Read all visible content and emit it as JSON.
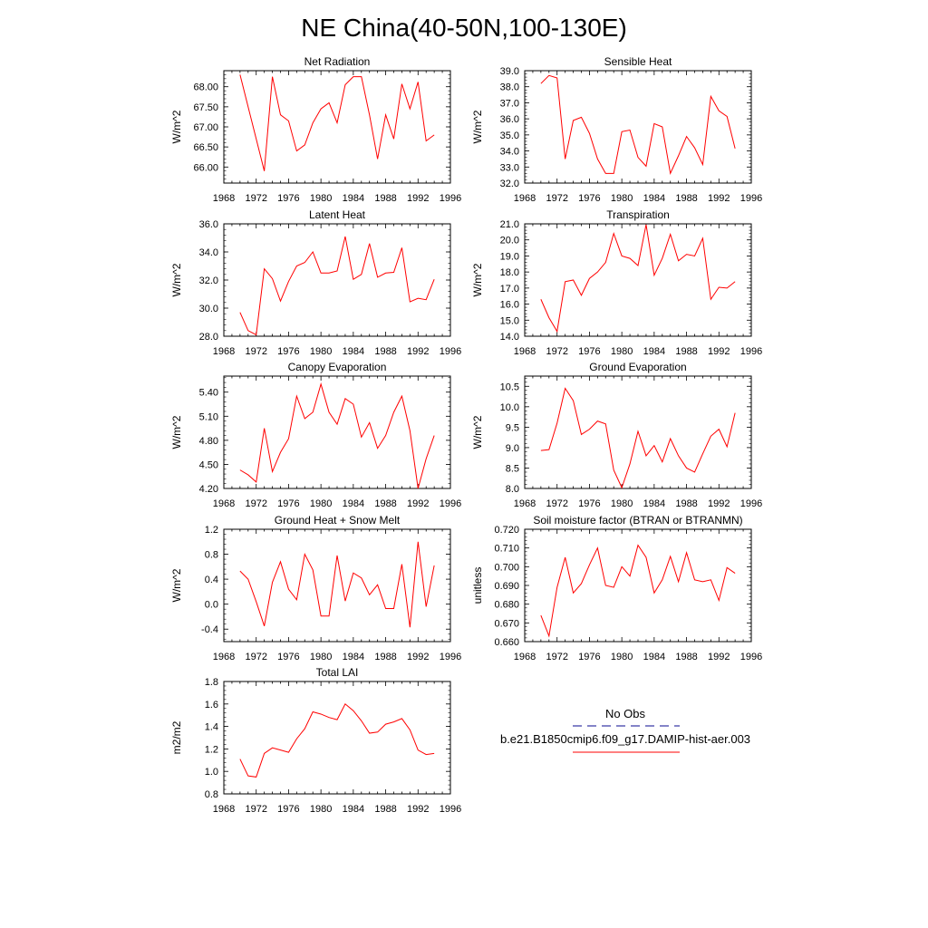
{
  "figure": {
    "title": "NE China(40-50N,100-130E)",
    "legend": {
      "obs_label": "No Obs",
      "model_label": "b.e21.B1850cmip6.f09_g17.DAMIP-hist-aer.003",
      "obs_color": "#3a3aa8",
      "model_color": "#ff0000",
      "placement": "lower-right"
    }
  },
  "chart_data": [
    {
      "type": "line",
      "title": "Net Radiation",
      "ylabel": "W/m^2",
      "xlim": [
        1968,
        1996
      ],
      "xticks": [
        1968,
        1972,
        1976,
        1980,
        1984,
        1988,
        1992,
        1996
      ],
      "ylim": [
        65.6,
        68.4
      ],
      "yticks": [
        66.0,
        66.5,
        67.0,
        67.5,
        68.0
      ],
      "ytick_labels": [
        "66.00",
        "66.50",
        "67.00",
        "67.50",
        "68.00"
      ],
      "x": [
        1970,
        1971,
        1972,
        1973,
        1974,
        1975,
        1976,
        1977,
        1978,
        1979,
        1980,
        1981,
        1982,
        1983,
        1984,
        1985,
        1986,
        1987,
        1988,
        1989,
        1990,
        1991,
        1992,
        1993,
        1994
      ],
      "values": [
        68.3,
        67.5,
        66.7,
        65.9,
        68.25,
        67.3,
        67.15,
        66.4,
        66.55,
        67.1,
        67.45,
        67.6,
        67.1,
        68.05,
        68.25,
        68.25,
        67.3,
        66.2,
        67.3,
        66.7,
        68.07,
        67.45,
        68.12,
        66.65,
        66.8
      ],
      "color": "#ff0000"
    },
    {
      "type": "line",
      "title": "Sensible Heat",
      "ylabel": "W/m^2",
      "xlim": [
        1968,
        1996
      ],
      "xticks": [
        1968,
        1972,
        1976,
        1980,
        1984,
        1988,
        1992,
        1996
      ],
      "ylim": [
        32.0,
        39.0
      ],
      "yticks": [
        32.0,
        33.0,
        34.0,
        35.0,
        36.0,
        37.0,
        38.0,
        39.0
      ],
      "ytick_labels": [
        "32.0",
        "33.0",
        "34.0",
        "35.0",
        "36.0",
        "37.0",
        "38.0",
        "39.0"
      ],
      "x": [
        1970,
        1971,
        1972,
        1973,
        1974,
        1975,
        1976,
        1977,
        1978,
        1979,
        1980,
        1981,
        1982,
        1983,
        1984,
        1985,
        1986,
        1987,
        1988,
        1989,
        1990,
        1991,
        1992,
        1993,
        1994
      ],
      "values": [
        38.2,
        38.7,
        38.55,
        33.5,
        35.9,
        36.1,
        35.1,
        33.5,
        32.6,
        32.6,
        35.2,
        35.3,
        33.6,
        33.05,
        35.7,
        35.5,
        32.6,
        33.7,
        34.9,
        34.2,
        33.15,
        37.4,
        36.5,
        36.15,
        34.15
      ],
      "color": "#ff0000"
    },
    {
      "type": "line",
      "title": "Latent Heat",
      "ylabel": "W/m^2",
      "xlim": [
        1968,
        1996
      ],
      "xticks": [
        1968,
        1972,
        1976,
        1980,
        1984,
        1988,
        1992,
        1996
      ],
      "ylim": [
        28.0,
        36.0
      ],
      "yticks": [
        28.0,
        30.0,
        32.0,
        34.0,
        36.0
      ],
      "ytick_labels": [
        "28.0",
        "30.0",
        "32.0",
        "34.0",
        "36.0"
      ],
      "x": [
        1970,
        1971,
        1972,
        1973,
        1974,
        1975,
        1976,
        1977,
        1978,
        1979,
        1980,
        1981,
        1982,
        1983,
        1984,
        1985,
        1986,
        1987,
        1988,
        1989,
        1990,
        1991,
        1992,
        1993,
        1994
      ],
      "values": [
        29.7,
        28.4,
        28.1,
        32.8,
        32.1,
        30.5,
        31.9,
        33.0,
        33.25,
        34.0,
        32.5,
        32.5,
        32.65,
        35.1,
        32.05,
        32.4,
        34.6,
        32.2,
        32.5,
        32.55,
        34.3,
        30.45,
        30.7,
        30.6,
        32.05
      ],
      "color": "#ff0000"
    },
    {
      "type": "line",
      "title": "Transpiration",
      "ylabel": "W/m^2",
      "xlim": [
        1968,
        1996
      ],
      "xticks": [
        1968,
        1972,
        1976,
        1980,
        1984,
        1988,
        1992,
        1996
      ],
      "ylim": [
        14.0,
        21.0
      ],
      "yticks": [
        14.0,
        15.0,
        16.0,
        17.0,
        18.0,
        19.0,
        20.0,
        21.0
      ],
      "ytick_labels": [
        "14.0",
        "15.0",
        "16.0",
        "17.0",
        "18.0",
        "19.0",
        "20.0",
        "21.0"
      ],
      "x": [
        1970,
        1971,
        1972,
        1973,
        1974,
        1975,
        1976,
        1977,
        1978,
        1979,
        1980,
        1981,
        1982,
        1983,
        1984,
        1985,
        1986,
        1987,
        1988,
        1989,
        1990,
        1991,
        1992,
        1993,
        1994
      ],
      "values": [
        16.3,
        15.15,
        14.3,
        17.4,
        17.5,
        16.55,
        17.6,
        18.0,
        18.6,
        20.4,
        19.0,
        18.85,
        18.4,
        20.95,
        17.8,
        18.85,
        20.35,
        18.7,
        19.1,
        19.0,
        20.1,
        16.3,
        17.05,
        17.0,
        17.4
      ],
      "color": "#ff0000"
    },
    {
      "type": "line",
      "title": "Canopy Evaporation",
      "ylabel": "W/m^2",
      "xlim": [
        1968,
        1996
      ],
      "xticks": [
        1968,
        1972,
        1976,
        1980,
        1984,
        1988,
        1992,
        1996
      ],
      "ylim": [
        4.2,
        5.6
      ],
      "yticks": [
        4.2,
        4.5,
        4.8,
        5.1,
        5.4
      ],
      "ytick_labels": [
        "4.20",
        "4.50",
        "4.80",
        "5.10",
        "5.40"
      ],
      "x": [
        1970,
        1971,
        1972,
        1973,
        1974,
        1975,
        1976,
        1977,
        1978,
        1979,
        1980,
        1981,
        1982,
        1983,
        1984,
        1985,
        1986,
        1987,
        1988,
        1989,
        1990,
        1991,
        1992,
        1993,
        1994
      ],
      "values": [
        4.43,
        4.37,
        4.28,
        4.95,
        4.41,
        4.65,
        4.82,
        5.35,
        5.07,
        5.15,
        5.5,
        5.15,
        5.0,
        5.32,
        5.25,
        4.84,
        5.02,
        4.7,
        4.86,
        5.15,
        5.35,
        4.92,
        4.2,
        4.57,
        4.86
      ],
      "color": "#ff0000"
    },
    {
      "type": "line",
      "title": "Ground Evaporation",
      "ylabel": "W/m^2",
      "xlim": [
        1968,
        1996
      ],
      "xticks": [
        1968,
        1972,
        1976,
        1980,
        1984,
        1988,
        1992,
        1996
      ],
      "ylim": [
        8.0,
        10.75
      ],
      "yticks": [
        8.0,
        8.5,
        9.0,
        9.5,
        10.0,
        10.5
      ],
      "ytick_labels": [
        "8.0",
        "8.5",
        "9.0",
        "9.5",
        "10.0",
        "10.5"
      ],
      "x": [
        1970,
        1971,
        1972,
        1973,
        1974,
        1975,
        1976,
        1977,
        1978,
        1979,
        1980,
        1981,
        1982,
        1983,
        1984,
        1985,
        1986,
        1987,
        1988,
        1989,
        1990,
        1991,
        1992,
        1993,
        1994
      ],
      "values": [
        8.93,
        8.95,
        9.6,
        10.45,
        10.15,
        9.32,
        9.45,
        9.65,
        9.58,
        8.45,
        8.02,
        8.6,
        9.4,
        8.8,
        9.05,
        8.65,
        9.22,
        8.8,
        8.5,
        8.4,
        8.85,
        9.28,
        9.45,
        9.02,
        9.85
      ],
      "color": "#ff0000"
    },
    {
      "type": "line",
      "title": "Ground Heat + Snow Melt",
      "ylabel": "W/m^2",
      "xlim": [
        1968,
        1996
      ],
      "xticks": [
        1968,
        1972,
        1976,
        1980,
        1984,
        1988,
        1992,
        1996
      ],
      "ylim": [
        -0.6,
        1.2
      ],
      "yticks": [
        -0.4,
        0.0,
        0.4,
        0.8,
        1.2
      ],
      "ytick_labels": [
        "-0.4",
        "0.0",
        "0.4",
        "0.8",
        "1.2"
      ],
      "x": [
        1970,
        1971,
        1972,
        1973,
        1974,
        1975,
        1976,
        1977,
        1978,
        1979,
        1980,
        1981,
        1982,
        1983,
        1984,
        1985,
        1986,
        1987,
        1988,
        1989,
        1990,
        1991,
        1992,
        1993,
        1994
      ],
      "values": [
        0.53,
        0.4,
        0.04,
        -0.35,
        0.35,
        0.68,
        0.24,
        0.07,
        0.8,
        0.55,
        -0.19,
        -0.19,
        0.78,
        0.05,
        0.5,
        0.42,
        0.15,
        0.31,
        -0.07,
        -0.07,
        0.64,
        -0.37,
        1.0,
        -0.04,
        0.62
      ],
      "color": "#ff0000"
    },
    {
      "type": "line",
      "title": "Soil moisture factor (BTRAN or BTRANMN)",
      "ylabel": "unitless",
      "xlim": [
        1968,
        1996
      ],
      "xticks": [
        1968,
        1972,
        1976,
        1980,
        1984,
        1988,
        1992,
        1996
      ],
      "ylim": [
        0.66,
        0.72
      ],
      "yticks": [
        0.66,
        0.67,
        0.68,
        0.69,
        0.7,
        0.71,
        0.72
      ],
      "ytick_labels": [
        "0.660",
        "0.670",
        "0.680",
        "0.690",
        "0.700",
        "0.710",
        "0.720"
      ],
      "x": [
        1970,
        1971,
        1972,
        1973,
        1974,
        1975,
        1976,
        1977,
        1978,
        1979,
        1980,
        1981,
        1982,
        1983,
        1984,
        1985,
        1986,
        1987,
        1988,
        1989,
        1990,
        1991,
        1992,
        1993,
        1994
      ],
      "values": [
        0.674,
        0.663,
        0.689,
        0.705,
        0.686,
        0.691,
        0.701,
        0.71,
        0.69,
        0.689,
        0.7,
        0.695,
        0.7115,
        0.705,
        0.686,
        0.693,
        0.7055,
        0.692,
        0.7075,
        0.693,
        0.692,
        0.693,
        0.682,
        0.6995,
        0.6965
      ],
      "color": "#ff0000"
    },
    {
      "type": "line",
      "title": "Total LAI",
      "ylabel": "m2/m2",
      "xlim": [
        1968,
        1996
      ],
      "xticks": [
        1968,
        1972,
        1976,
        1980,
        1984,
        1988,
        1992,
        1996
      ],
      "ylim": [
        0.8,
        1.8
      ],
      "yticks": [
        0.8,
        1.0,
        1.2,
        1.4,
        1.6,
        1.8
      ],
      "ytick_labels": [
        "0.8",
        "1.0",
        "1.2",
        "1.4",
        "1.6",
        "1.8"
      ],
      "x": [
        1970,
        1971,
        1972,
        1973,
        1974,
        1975,
        1976,
        1977,
        1978,
        1979,
        1980,
        1981,
        1982,
        1983,
        1984,
        1985,
        1986,
        1987,
        1988,
        1989,
        1990,
        1991,
        1992,
        1993,
        1994
      ],
      "values": [
        1.11,
        0.96,
        0.95,
        1.16,
        1.21,
        1.19,
        1.17,
        1.29,
        1.38,
        1.53,
        1.51,
        1.48,
        1.46,
        1.6,
        1.54,
        1.45,
        1.34,
        1.35,
        1.42,
        1.44,
        1.47,
        1.37,
        1.19,
        1.15,
        1.16
      ],
      "color": "#ff0000"
    }
  ]
}
